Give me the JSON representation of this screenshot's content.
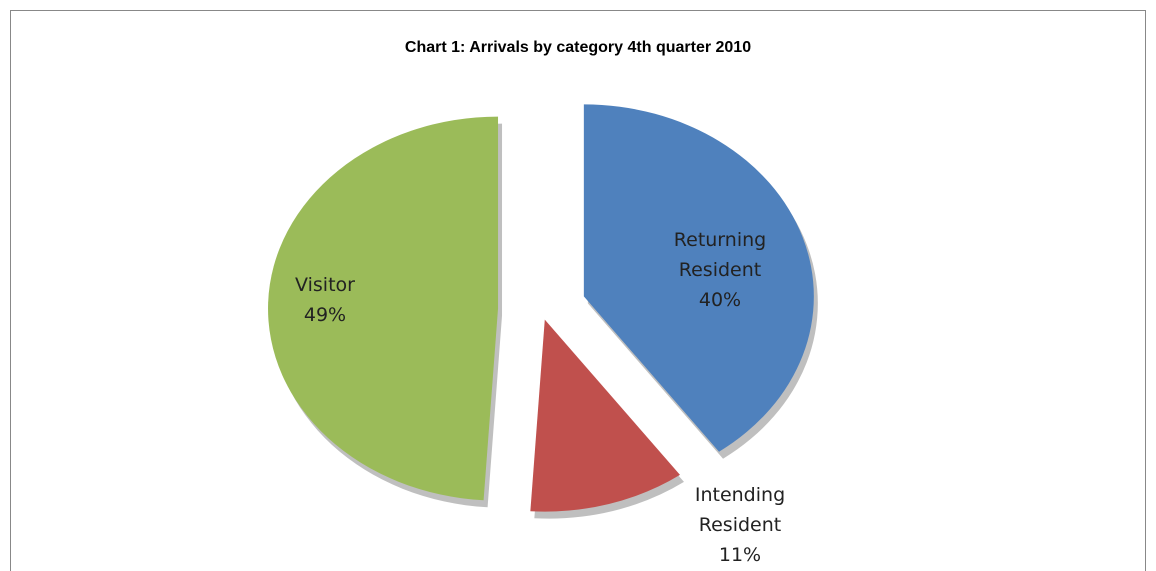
{
  "chart_data": {
    "type": "pie",
    "title": "Chart 1: Arrivals by category 4th quarter 2010",
    "categories": [
      "Returning Resident",
      "Intending Resident",
      "Visitor"
    ],
    "values": [
      40,
      11,
      49
    ],
    "value_labels": [
      "40%",
      "11%",
      "49%"
    ],
    "colors": [
      "#4f81bd",
      "#c0504d",
      "#9bbb59"
    ]
  }
}
